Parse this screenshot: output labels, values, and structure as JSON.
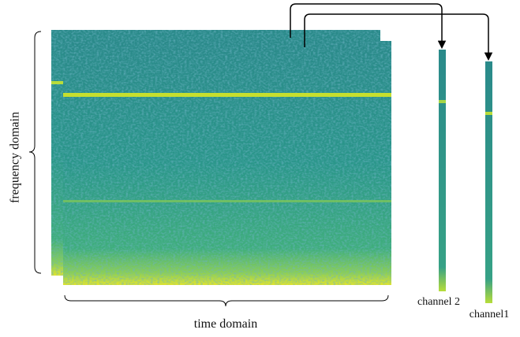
{
  "labels": {
    "frequency_axis": "frequency domain",
    "time_axis": "time domain",
    "channel_2": "channel 2",
    "channel_1": "channel1"
  }
}
